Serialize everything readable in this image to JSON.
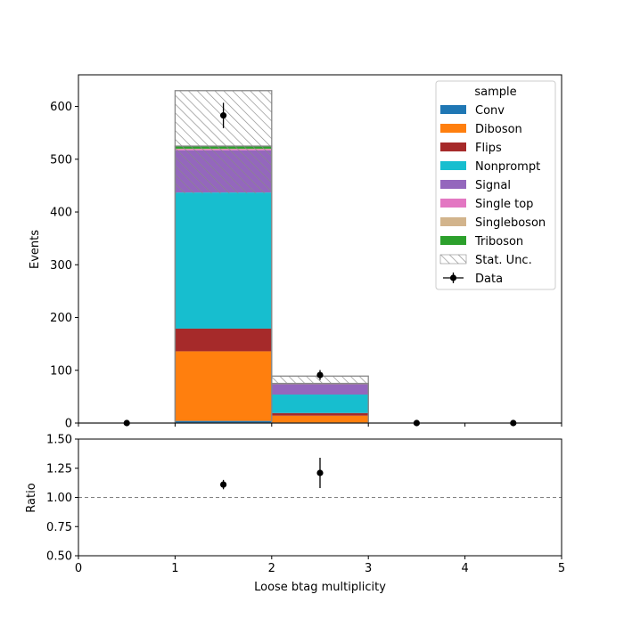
{
  "chart_data": {
    "type": "bar",
    "stacked": true,
    "title": "",
    "bin_edges": [
      0,
      1,
      2,
      3,
      4,
      5
    ],
    "xlabel": "Loose btag multiplicity",
    "ylabel": "Events",
    "ratio_ylabel": "Ratio",
    "xlim": [
      0,
      5
    ],
    "ylim": [
      0,
      660
    ],
    "ratio_ylim": [
      0.5,
      1.5
    ],
    "x_ticks": [
      "0",
      "1",
      "2",
      "3",
      "4",
      "5"
    ],
    "y_ticks": [
      "0",
      "100",
      "200",
      "300",
      "400",
      "500",
      "600"
    ],
    "ratio_ticks": [
      "0.50",
      "0.75",
      "1.00",
      "1.25",
      "1.50"
    ],
    "ratio_reference": 1.0,
    "legend": {
      "title": "sample",
      "placement": "top-right",
      "unc_label": "Stat. Unc.",
      "data_label": "Data"
    },
    "series": [
      {
        "name": "Conv",
        "color": "#1f77b4",
        "values": [
          0,
          4,
          1,
          0,
          0
        ]
      },
      {
        "name": "Diboson",
        "color": "#ff7f0e",
        "values": [
          0,
          132,
          13,
          0,
          0
        ]
      },
      {
        "name": "Flips",
        "color": "#a62a2a",
        "values": [
          0,
          43,
          5,
          0,
          0
        ]
      },
      {
        "name": "Nonprompt",
        "color": "#17becf",
        "values": [
          0,
          258,
          35,
          0,
          0
        ]
      },
      {
        "name": "Signal",
        "color": "#9467bd",
        "values": [
          0,
          80,
          20,
          0,
          0
        ]
      },
      {
        "name": "Single top",
        "color": "#e377c2",
        "values": [
          0,
          2,
          0.3,
          0,
          0
        ]
      },
      {
        "name": "Singleboson",
        "color": "#d2b48c",
        "values": [
          0,
          1,
          0.2,
          0,
          0
        ]
      },
      {
        "name": "Triboson",
        "color": "#2ca02c",
        "values": [
          0,
          5,
          0.5,
          0,
          0
        ]
      }
    ],
    "stat_unc": [
      {
        "bin": [
          1,
          2
        ],
        "low": 435,
        "high": 630
      },
      {
        "bin": [
          2,
          3
        ],
        "low": 75,
        "high": 89
      }
    ],
    "data_points": [
      {
        "x": 0.5,
        "y": 0,
        "yerr": 0
      },
      {
        "x": 1.5,
        "y": 583,
        "yerr": 24
      },
      {
        "x": 2.5,
        "y": 91,
        "yerr": 9.5
      },
      {
        "x": 3.5,
        "y": 0,
        "yerr": 0
      },
      {
        "x": 4.5,
        "y": 0,
        "yerr": 0
      }
    ],
    "ratio_points": [
      {
        "x": 1.5,
        "y": 1.11,
        "yerr": 0.04
      },
      {
        "x": 2.5,
        "y": 1.21,
        "yerr": 0.13
      }
    ]
  }
}
